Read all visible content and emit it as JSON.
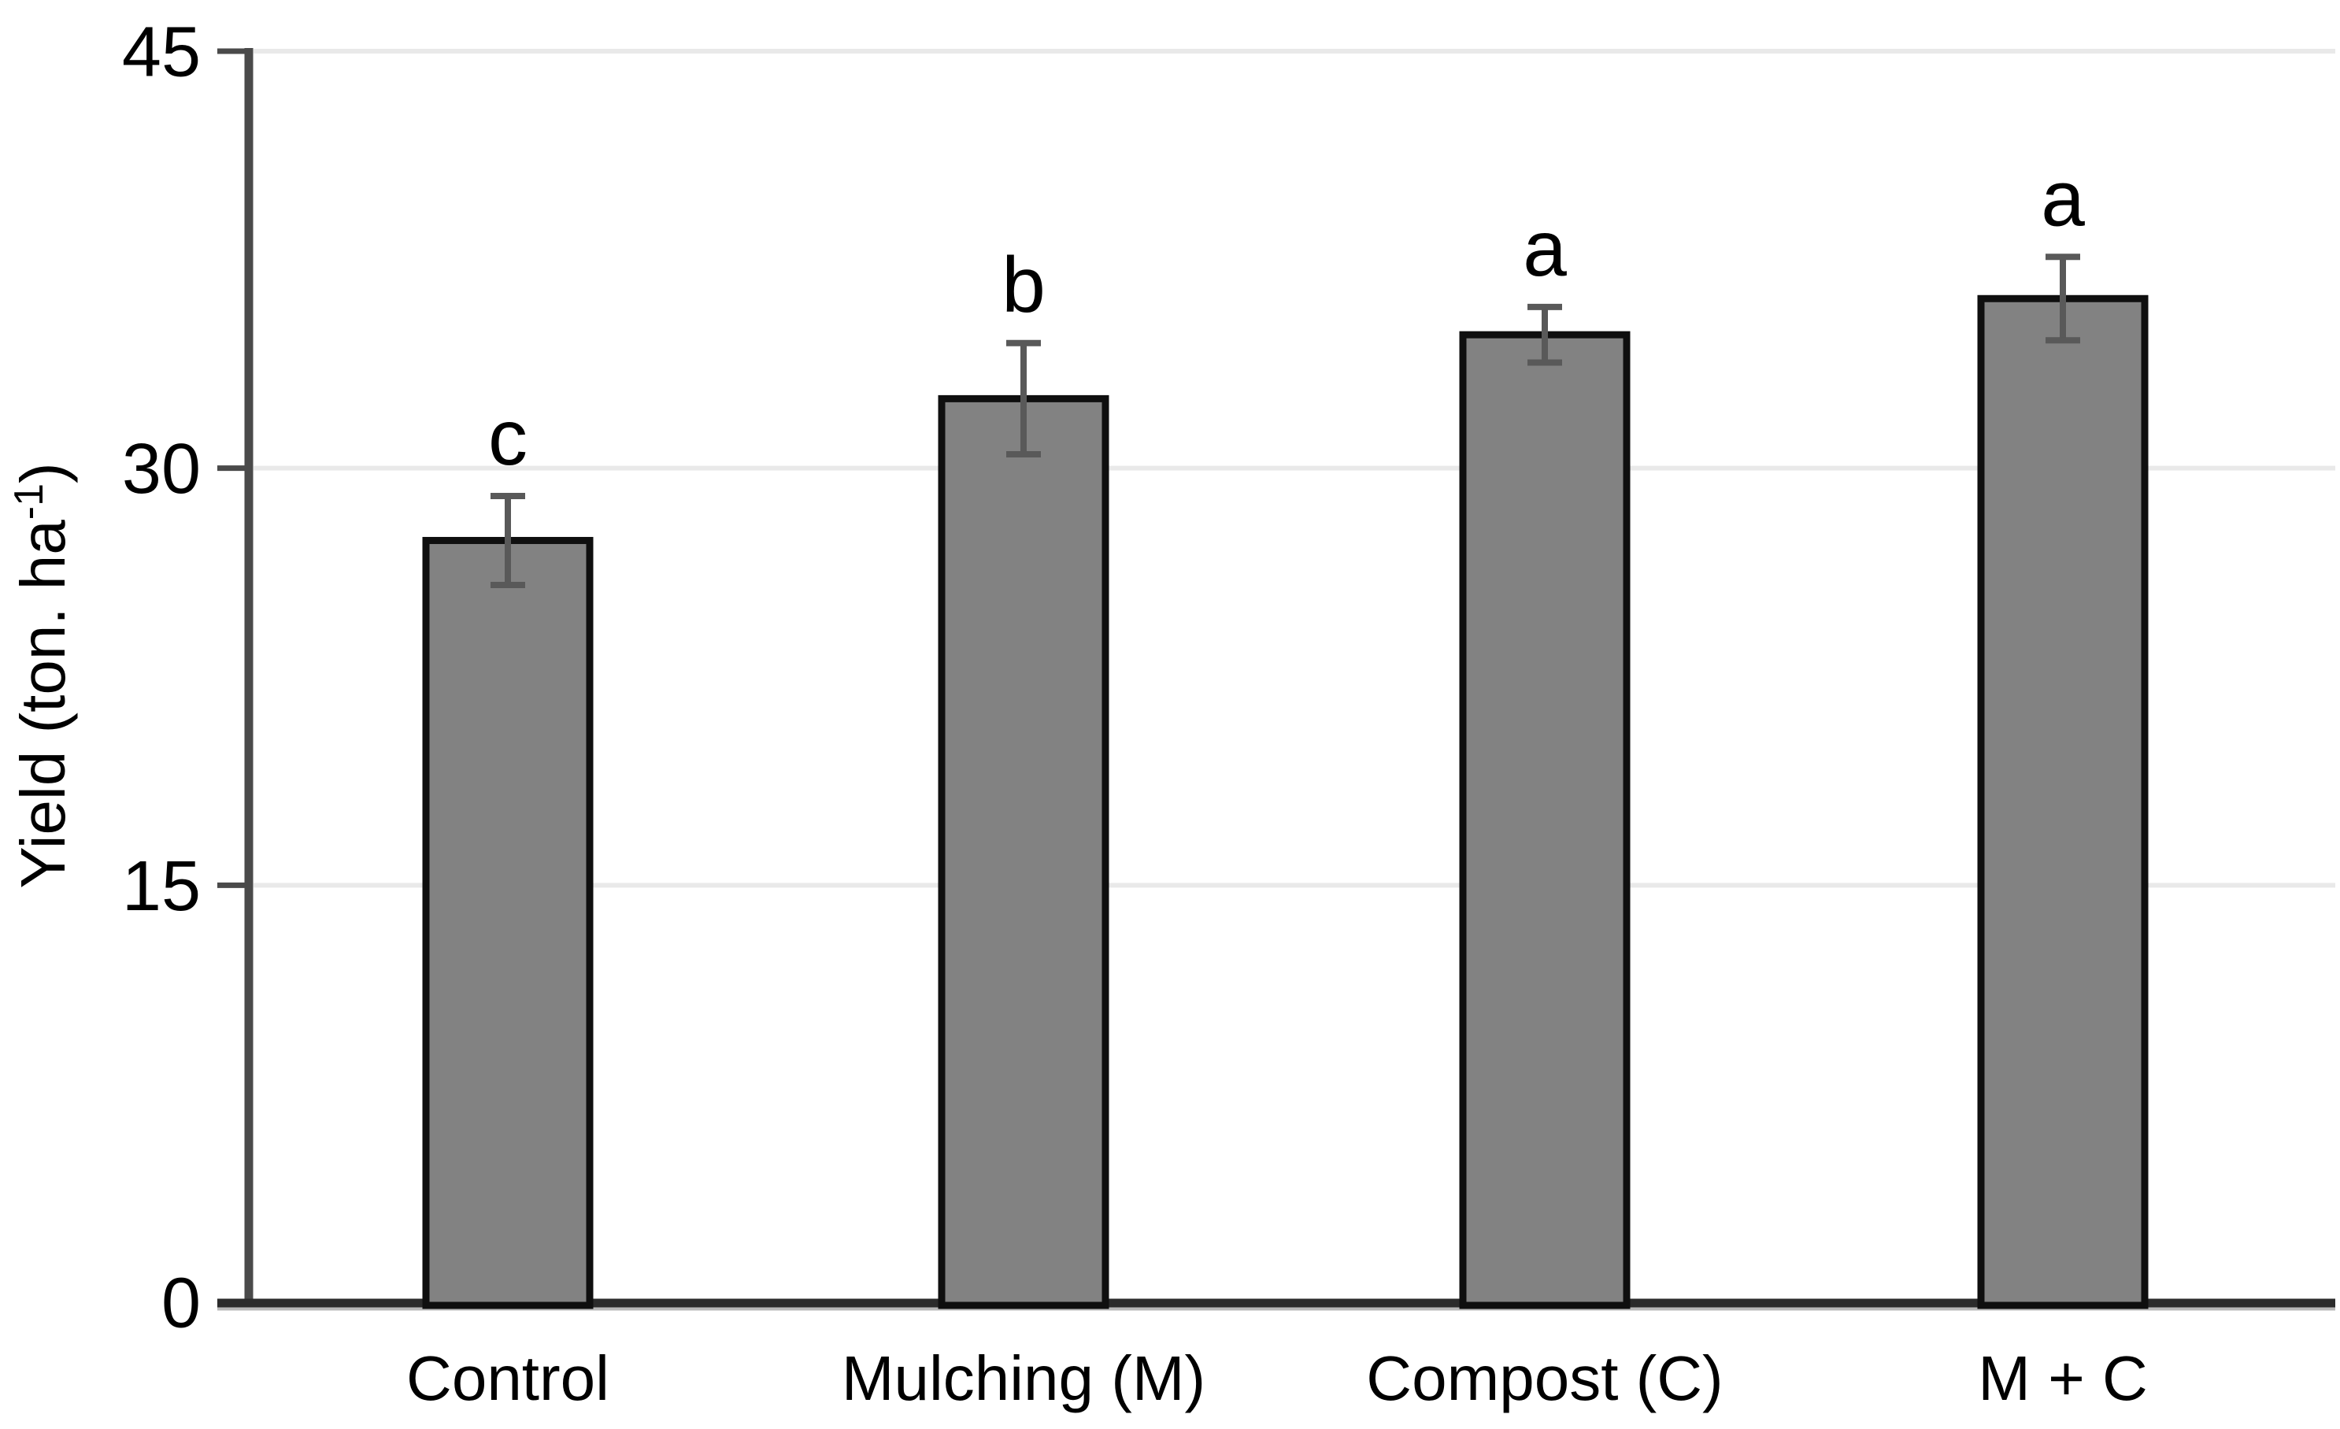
{
  "chart_data": {
    "type": "bar",
    "title": "",
    "xlabel": "",
    "ylabel": {
      "text": "Yield (ton. ha",
      "superscript": "-1",
      "suffix": ")"
    },
    "ylabel_plain": "Yield (ton. ha⁻¹)",
    "categories": [
      "Control",
      "Mulching (M)",
      "Compost (C)",
      "M + C"
    ],
    "values": [
      27.4,
      32.5,
      34.8,
      36.1
    ],
    "errors": [
      1.6,
      2.0,
      1.0,
      1.5
    ],
    "sig_letters": [
      "c",
      "b",
      "a",
      "a"
    ],
    "yticks": [
      0,
      15,
      30,
      45
    ],
    "ylim": [
      0,
      45
    ],
    "grid": "horizontal-light",
    "legend": "none",
    "colors": {
      "background": "#ffffff",
      "bar_fill": "#828282",
      "bar_border": "#0f0f0f",
      "error_bar": "#595959",
      "axis": "#4a4a4a",
      "baseline": "#2b2b2b",
      "baseline_shadow": "#b8b8b8",
      "gridline": "#e9e9e9",
      "text": "#000000"
    }
  }
}
